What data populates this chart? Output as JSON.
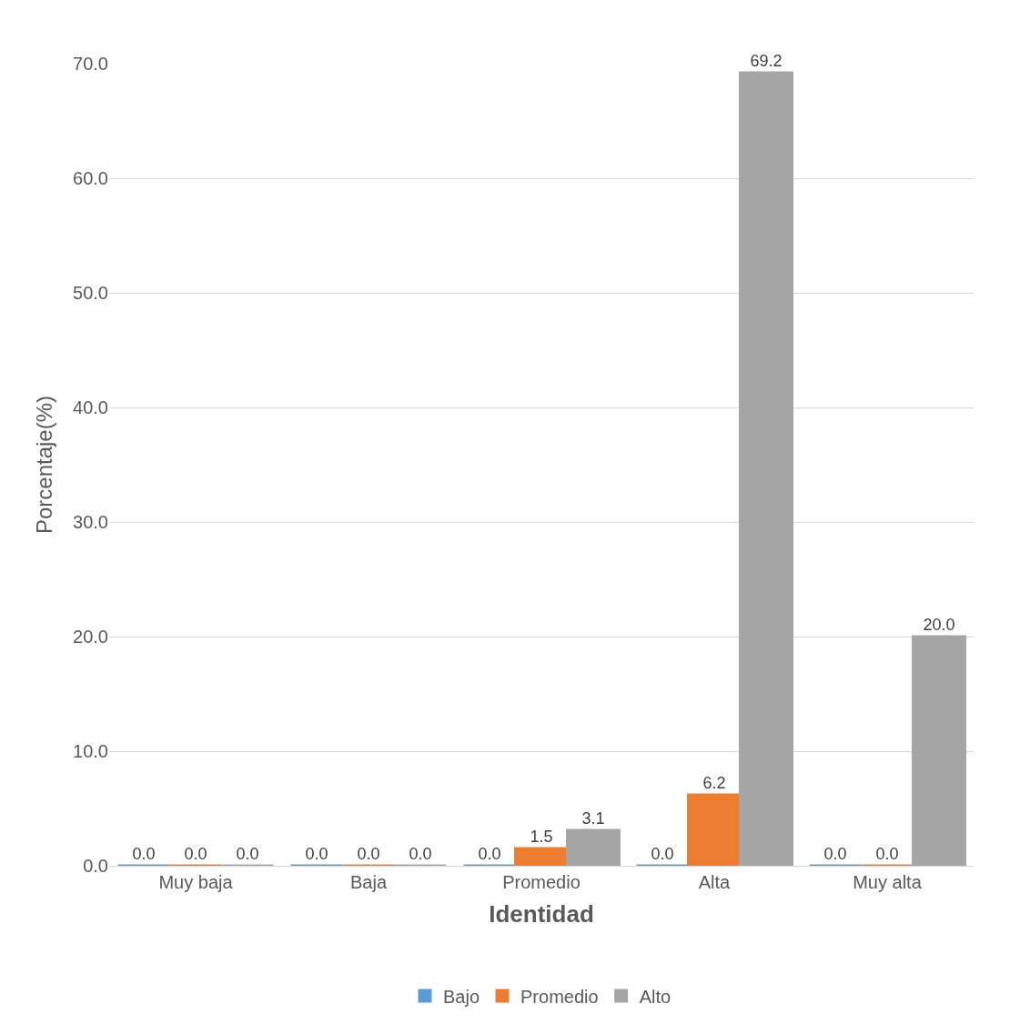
{
  "chart_data": {
    "type": "bar",
    "xlabel": "Identidad",
    "ylabel": "Porcentaje(%)",
    "categories": [
      "Muy baja",
      "Baja",
      "Promedio",
      "Alta",
      "Muy alta"
    ],
    "series": [
      {
        "name": "Bajo",
        "color": "#5b9bd5",
        "values": [
          0.0,
          0.0,
          0.0,
          0.0,
          0.0
        ],
        "value_labels": [
          "0.0",
          "0.0",
          "0.0",
          "0.0",
          "0.0"
        ]
      },
      {
        "name": "Promedio",
        "color": "#ed7d31",
        "values": [
          0.0,
          0.0,
          1.5,
          6.2,
          0.0
        ],
        "value_labels": [
          "0.0",
          "0.0",
          "1.5",
          "6.2",
          "0.0"
        ]
      },
      {
        "name": "Alto",
        "color": "#a5a5a5",
        "values": [
          0.0,
          0.0,
          3.1,
          69.2,
          20.0
        ],
        "value_labels": [
          "0.0",
          "0.0",
          "3.1",
          "69.2",
          "20.0"
        ]
      }
    ],
    "ylim": [
      0,
      70
    ],
    "yticks": [
      {
        "value": 0,
        "label": "0.0"
      },
      {
        "value": 10,
        "label": "10.0"
      },
      {
        "value": 20,
        "label": "20.0"
      },
      {
        "value": 30,
        "label": "30.0"
      },
      {
        "value": 40,
        "label": "40.0"
      },
      {
        "value": 50,
        "label": "50.0"
      },
      {
        "value": 60,
        "label": "60.0"
      },
      {
        "value": 70,
        "label": "70.0"
      }
    ],
    "grid": "y",
    "legend": "bottom"
  }
}
